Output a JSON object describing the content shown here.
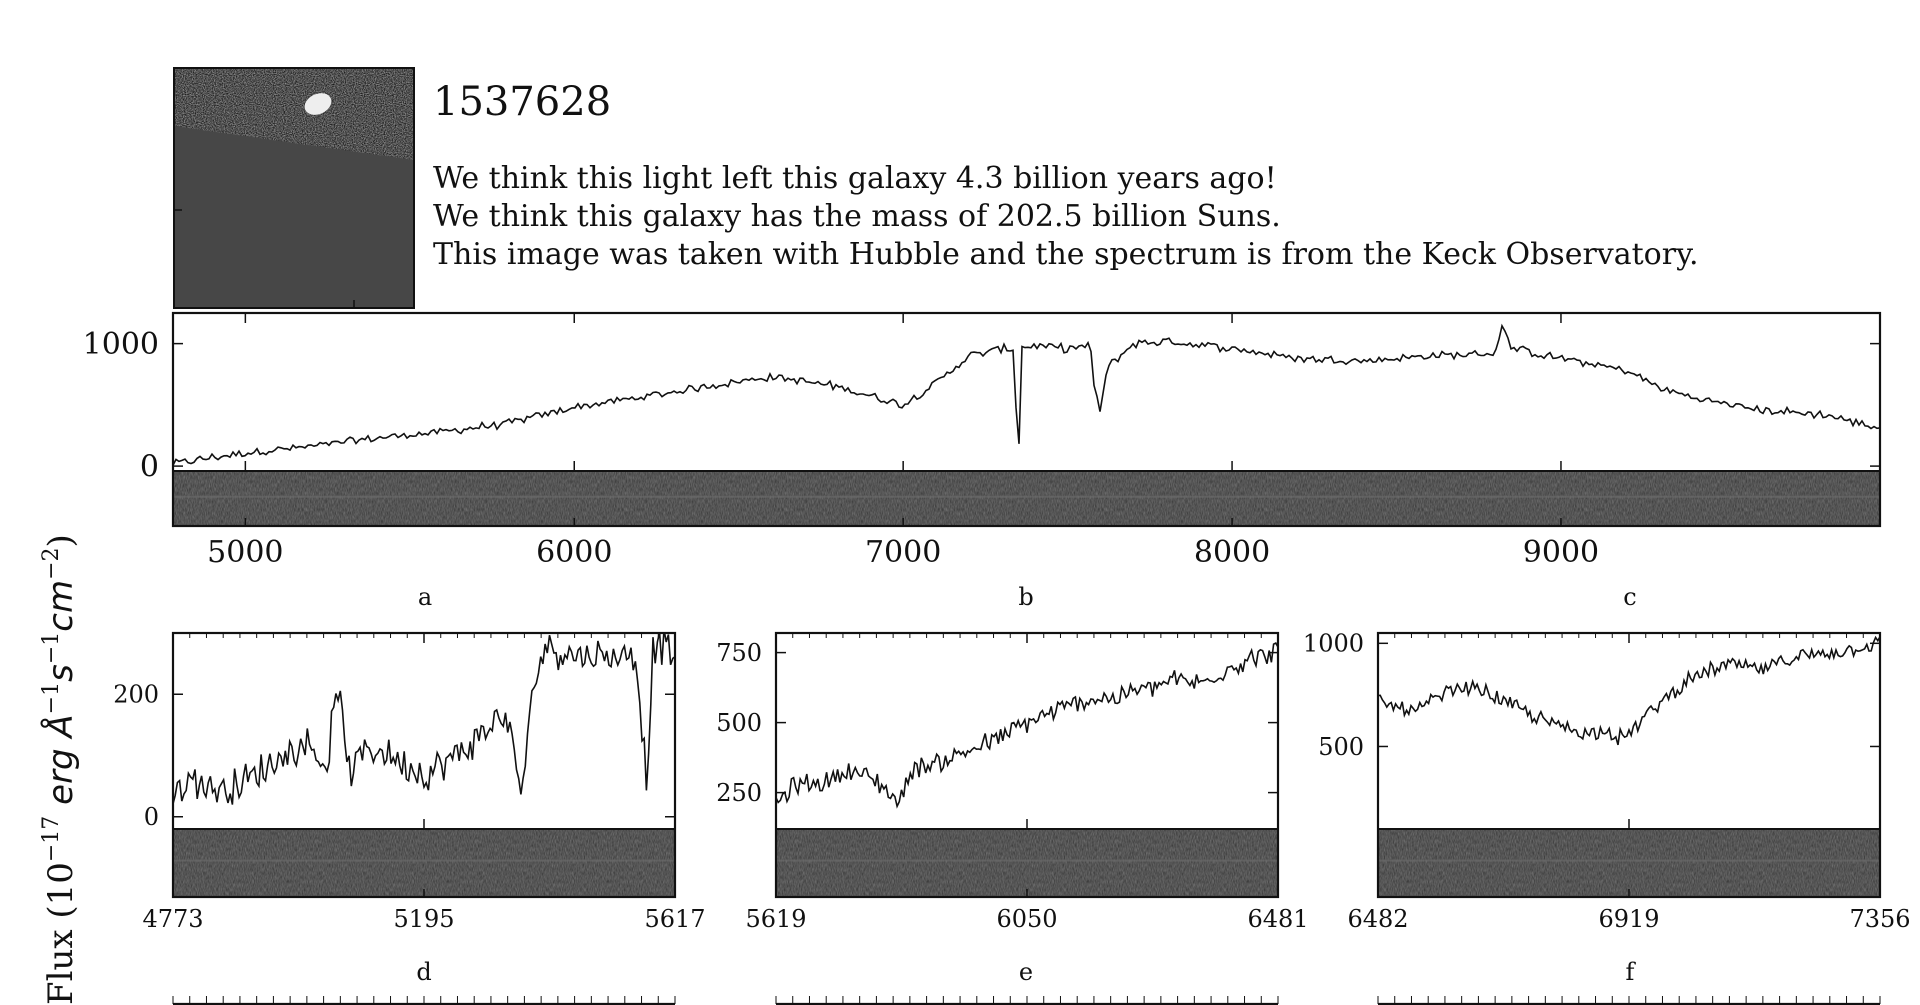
{
  "header": {
    "object_id": "1537628",
    "lines": [
      "We think this light left this galaxy 4.3 billion years ago!",
      "We think this galaxy has the mass of 202.5 billion Suns.",
      "This image was taken with Hubble and the spectrum is from the Keck Observatory."
    ]
  },
  "colors": {
    "line": "#111111",
    "background": "#ffffff",
    "stamp_galaxy": "#e8e8e8",
    "stamp_mask": "#474747",
    "spectrum_2d": "#2b2b2b"
  },
  "chart_data": [
    {
      "type": "line",
      "panel": "overview",
      "ylabel_prefix": "Flux (10",
      "ylabel_exponent": "−17",
      "ylabel_units_main": " erg Å",
      "ylabel_units_exp1": "−1",
      "ylabel_units_mid": "s",
      "ylabel_units_exp2": "−1",
      "ylabel_units_end": "cm",
      "ylabel_units_exp3": "−2",
      "ylabel_close": ")",
      "xlim": [
        4780,
        9970
      ],
      "ylim": [
        -40,
        1250
      ],
      "xticks": [
        5000,
        6000,
        7000,
        8000,
        9000
      ],
      "xtick_labels": [
        "5000",
        "6000",
        "7000",
        "8000",
        "9000"
      ],
      "yticks": [
        0,
        1000
      ],
      "ytick_labels": [
        "0",
        "1000"
      ],
      "zoom_labels": [
        "a",
        "b",
        "c"
      ],
      "x": [
        4780,
        4900,
        5000,
        5200,
        5400,
        5600,
        5800,
        6000,
        6200,
        6400,
        6600,
        6800,
        7000,
        7100,
        7200,
        7300,
        7340,
        7345,
        7355,
        7360,
        7400,
        7500,
        7570,
        7580,
        7600,
        7620,
        7700,
        7800,
        8000,
        8200,
        8400,
        8600,
        8800,
        8820,
        8850,
        9000,
        9200,
        9300,
        9400,
        9600,
        9800,
        9970
      ],
      "y": [
        20,
        70,
        110,
        160,
        230,
        280,
        350,
        480,
        560,
        650,
        730,
        650,
        500,
        680,
        900,
        960,
        950,
        200,
        200,
        970,
        980,
        960,
        980,
        640,
        450,
        800,
        1000,
        1020,
        960,
        880,
        860,
        900,
        920,
        1150,
        960,
        880,
        780,
        640,
        560,
        460,
        420,
        310
      ]
    },
    {
      "type": "line",
      "panel": "a",
      "xlim": [
        4773,
        5617
      ],
      "ylim": [
        -20,
        300
      ],
      "xticks": [
        4773,
        5195,
        5617
      ],
      "xtick_labels": [
        "4773",
        "5195",
        "5617"
      ],
      "yticks": [
        0,
        200
      ],
      "ytick_labels": [
        "0",
        "200"
      ],
      "zoom_labels": [
        "d"
      ],
      "x": [
        4773,
        4800,
        4850,
        4900,
        4950,
        5000,
        5030,
        5050,
        5070,
        5100,
        5150,
        5200,
        5250,
        5300,
        5330,
        5360,
        5380,
        5400,
        5450,
        5500,
        5550,
        5570,
        5580,
        5590,
        5617
      ],
      "y": [
        30,
        60,
        45,
        60,
        95,
        120,
        80,
        210,
        70,
        115,
        95,
        70,
        100,
        140,
        170,
        40,
        220,
        280,
        265,
        260,
        270,
        60,
        275,
        280,
        265
      ]
    },
    {
      "type": "line",
      "panel": "b",
      "xlim": [
        5619,
        6481
      ],
      "ylim": [
        120,
        820
      ],
      "xticks": [
        5619,
        6050,
        6481
      ],
      "xtick_labels": [
        "5619",
        "6050",
        "6481"
      ],
      "yticks": [
        250,
        500,
        750
      ],
      "ytick_labels": [
        "250",
        "500",
        "750"
      ],
      "zoom_labels": [
        "e"
      ],
      "x": [
        5619,
        5650,
        5700,
        5750,
        5800,
        5830,
        5850,
        5900,
        5950,
        6000,
        6050,
        6100,
        6150,
        6200,
        6250,
        6300,
        6350,
        6400,
        6450,
        6481
      ],
      "y": [
        210,
        270,
        290,
        330,
        280,
        210,
        330,
        360,
        400,
        440,
        500,
        540,
        580,
        590,
        620,
        650,
        640,
        700,
        740,
        760
      ],
      "noise": 45
    },
    {
      "type": "line",
      "panel": "c",
      "xlim": [
        6482,
        7356
      ],
      "ylim": [
        100,
        1050
      ],
      "xticks": [
        6482,
        6919,
        7356
      ],
      "xtick_labels": [
        "6482",
        "6919",
        "7356"
      ],
      "yticks": [
        500,
        1000
      ],
      "ytick_labels": [
        "500",
        "1000"
      ],
      "zoom_labels": [
        "f"
      ],
      "x": [
        6482,
        6500,
        6550,
        6600,
        6650,
        6700,
        6750,
        6800,
        6850,
        6880,
        6900,
        6919,
        6950,
        7000,
        7050,
        7100,
        7150,
        7200,
        7250,
        7300,
        7356
      ],
      "y": [
        720,
        700,
        670,
        760,
        790,
        720,
        650,
        600,
        560,
        590,
        540,
        560,
        650,
        780,
        860,
        900,
        870,
        930,
        950,
        970,
        1000
      ],
      "noise": 45
    }
  ]
}
